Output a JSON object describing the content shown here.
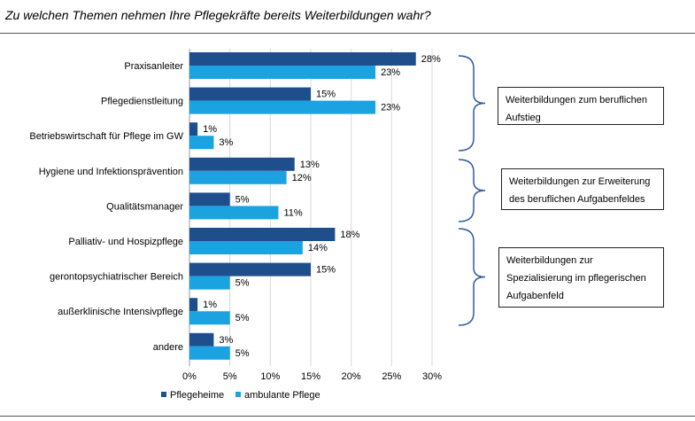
{
  "title": "Zu welchen Themen nehmen Ihre Pflegekräfte bereits Weiterbildungen wahr?",
  "colors": {
    "pflegeheime": "#1f4e8c",
    "ambulant": "#1aa3e0",
    "grid": "#d9d9d9",
    "bracket": "#2e5b9e"
  },
  "boxes": [
    {
      "text": "Weiterbildungen zum beruflichen Aufstieg"
    },
    {
      "text": "Weiterbildungen zur Erweiterung des beruflichen Aufgabenfeldes"
    },
    {
      "text": "Weiterbildungen zur Spezialisierung im pflegerischen Aufgabenfeld"
    }
  ],
  "chart_data": {
    "type": "bar",
    "orientation": "horizontal",
    "title": "Zu welchen Themen nehmen Ihre Pflegekräfte bereits Weiterbildungen wahr?",
    "categories": [
      "Praxisanleiter",
      "Pflegedienstleitung",
      "Betriebswirtschaft für Pflege im GW",
      "Hygiene und Infektionsprävention",
      "Qualitätsmanager",
      "Palliativ- und Hospizpflege",
      "gerontopsychiatrischer Bereich",
      "außerklinische Intensivpflege",
      "andere"
    ],
    "series": [
      {
        "name": "Pflegeheime",
        "values": [
          28,
          15,
          1,
          13,
          5,
          18,
          15,
          1,
          3
        ]
      },
      {
        "name": "ambulante Pflege",
        "values": [
          23,
          23,
          3,
          12,
          11,
          14,
          5,
          5,
          5
        ]
      }
    ],
    "value_labels": {
      "Pflegeheime": [
        "28%",
        "15%",
        "1%",
        "13%",
        "5%",
        "18%",
        "15%",
        "1%",
        "3%"
      ],
      "ambulante Pflege": [
        "23%",
        "23%",
        "3%",
        "12%",
        "11%",
        "14%",
        "5%",
        "5%",
        "5%"
      ]
    },
    "xlim": [
      0,
      30
    ],
    "xticks": [
      "0%",
      "5%",
      "10%",
      "15%",
      "20%",
      "25%",
      "30%"
    ],
    "grid": true,
    "legend_position": "bottom-left"
  }
}
